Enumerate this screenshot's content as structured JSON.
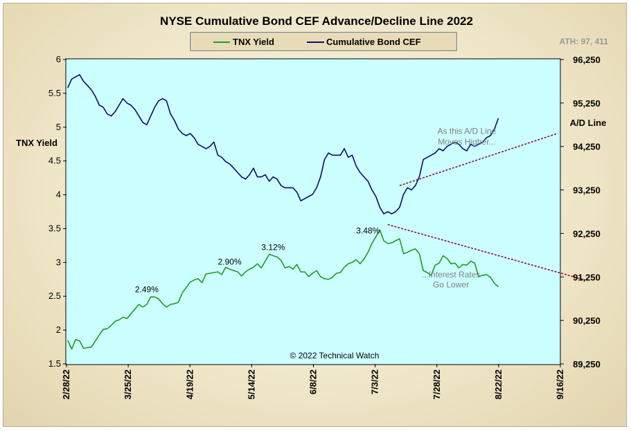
{
  "chart_data": {
    "type": "line",
    "title": "NYSE Cumulative  Bond CEF Advance/Decline  Line 2022",
    "ath_label": "ATH: 97, 411",
    "copyright": "© 2022 Technical  Watch",
    "left_axis": {
      "label": "TNX  Yield",
      "min": 1.5,
      "max": 6,
      "ticks": [
        "1.5",
        "2",
        "2.5",
        "3",
        "3.5",
        "4",
        "4.5",
        "5",
        "5.5",
        "6"
      ]
    },
    "right_axis": {
      "label": "A/D Line",
      "min": 89250,
      "max": 96250,
      "ticks": [
        "89,250",
        "90,250",
        "91,250",
        "92,250",
        "93,250",
        "94,250",
        "95,250",
        "96,250"
      ]
    },
    "x_axis": {
      "ticks": [
        "2/28/22",
        "3/25/22",
        "4/19/22",
        "5/14/22",
        "6/8/22",
        "7/3/22",
        "7/28/22",
        "8/22/22",
        "9/16/22"
      ],
      "span_days": 200
    },
    "legend": [
      "TNX Yield",
      "Cumulative Bond CEF"
    ],
    "colors": {
      "tnx": "#1f9a1f",
      "cef": "#0a0a6e",
      "plot_bg": "#ccffff",
      "trend": "#8b1030"
    },
    "series": [
      {
        "name": "TNX Yield",
        "axis": "left",
        "points": [
          [
            0,
            1.85
          ],
          [
            1,
            1.72
          ],
          [
            2,
            1.86
          ],
          [
            3,
            1.84
          ],
          [
            4,
            1.73
          ],
          [
            5,
            1.74
          ],
          [
            6,
            1.75
          ],
          [
            7,
            1.84
          ],
          [
            8,
            1.93
          ],
          [
            9,
            2.01
          ],
          [
            10,
            2.02
          ],
          [
            11,
            2.07
          ],
          [
            12,
            2.13
          ],
          [
            13,
            2.15
          ],
          [
            14,
            2.19
          ],
          [
            15,
            2.17
          ],
          [
            16,
            2.24
          ],
          [
            17,
            2.31
          ],
          [
            18,
            2.38
          ],
          [
            19,
            2.34
          ],
          [
            20,
            2.38
          ],
          [
            21,
            2.49
          ],
          [
            22,
            2.49
          ],
          [
            23,
            2.46
          ],
          [
            24,
            2.39
          ],
          [
            25,
            2.34
          ],
          [
            26,
            2.38
          ],
          [
            27,
            2.39
          ],
          [
            28,
            2.41
          ],
          [
            29,
            2.55
          ],
          [
            30,
            2.63
          ],
          [
            31,
            2.71
          ],
          [
            32,
            2.74
          ],
          [
            33,
            2.76
          ],
          [
            34,
            2.7
          ],
          [
            35,
            2.83
          ],
          [
            36,
            2.84
          ],
          [
            37,
            2.85
          ],
          [
            38,
            2.86
          ],
          [
            39,
            2.82
          ],
          [
            40,
            2.93
          ],
          [
            41,
            2.9
          ],
          [
            42,
            2.88
          ],
          [
            43,
            2.86
          ],
          [
            44,
            2.8
          ],
          [
            45,
            2.86
          ],
          [
            46,
            2.9
          ],
          [
            47,
            2.93
          ],
          [
            48,
            2.98
          ],
          [
            49,
            2.92
          ],
          [
            50,
            3.02
          ],
          [
            51,
            3.12
          ],
          [
            52,
            3.1
          ],
          [
            53,
            3.08
          ],
          [
            54,
            3.03
          ],
          [
            55,
            2.92
          ],
          [
            56,
            2.94
          ],
          [
            57,
            2.9
          ],
          [
            58,
            2.97
          ],
          [
            59,
            2.86
          ],
          [
            60,
            2.86
          ],
          [
            61,
            2.79
          ],
          [
            62,
            2.84
          ],
          [
            63,
            2.88
          ],
          [
            64,
            2.79
          ],
          [
            65,
            2.76
          ],
          [
            66,
            2.75
          ],
          [
            67,
            2.78
          ],
          [
            68,
            2.84
          ],
          [
            69,
            2.85
          ],
          [
            70,
            2.93
          ],
          [
            71,
            2.98
          ],
          [
            72,
            3.0
          ],
          [
            73,
            3.04
          ],
          [
            74,
            2.98
          ],
          [
            75,
            3.05
          ],
          [
            76,
            3.15
          ],
          [
            77,
            3.28
          ],
          [
            78,
            3.38
          ],
          [
            79,
            3.48
          ],
          [
            80,
            3.32
          ],
          [
            81,
            3.28
          ],
          [
            82,
            3.29
          ],
          [
            83,
            3.32
          ],
          [
            84,
            3.35
          ],
          [
            85,
            3.13
          ],
          [
            86,
            3.15
          ],
          [
            87,
            3.18
          ],
          [
            88,
            3.2
          ],
          [
            89,
            3.13
          ],
          [
            90,
            2.88
          ],
          [
            91,
            2.85
          ],
          [
            92,
            2.81
          ],
          [
            93,
            2.96
          ],
          [
            94,
            2.99
          ],
          [
            95,
            3.1
          ],
          [
            96,
            3.06
          ],
          [
            97,
            2.98
          ],
          [
            98,
            2.99
          ],
          [
            99,
            2.92
          ],
          [
            100,
            2.97
          ],
          [
            101,
            2.96
          ],
          [
            102,
            3.02
          ],
          [
            103,
            2.99
          ],
          [
            104,
            2.79
          ],
          [
            105,
            2.81
          ],
          [
            106,
            2.82
          ],
          [
            107,
            2.78
          ],
          [
            108,
            2.69
          ],
          [
            109,
            2.64
          ]
        ]
      },
      {
        "name": "Cumulative Bond CEF",
        "axis": "right",
        "points": [
          [
            0,
            95.6
          ],
          [
            1,
            95.8
          ],
          [
            2,
            95.85
          ],
          [
            3,
            95.9
          ],
          [
            4,
            95.75
          ],
          [
            5,
            95.65
          ],
          [
            6,
            95.55
          ],
          [
            7,
            95.4
          ],
          [
            8,
            95.2
          ],
          [
            9,
            95.15
          ],
          [
            10,
            95.0
          ],
          [
            11,
            94.95
          ],
          [
            12,
            95.05
          ],
          [
            13,
            95.2
          ],
          [
            14,
            95.35
          ],
          [
            15,
            95.25
          ],
          [
            16,
            95.2
          ],
          [
            17,
            95.1
          ],
          [
            18,
            94.95
          ],
          [
            19,
            94.8
          ],
          [
            20,
            94.75
          ],
          [
            21,
            94.95
          ],
          [
            22,
            95.15
          ],
          [
            23,
            95.3
          ],
          [
            24,
            95.35
          ],
          [
            25,
            95.3
          ],
          [
            26,
            95.0
          ],
          [
            27,
            94.85
          ],
          [
            28,
            94.65
          ],
          [
            29,
            94.55
          ],
          [
            30,
            94.5
          ],
          [
            31,
            94.55
          ],
          [
            32,
            94.45
          ],
          [
            33,
            94.3
          ],
          [
            34,
            94.25
          ],
          [
            35,
            94.2
          ],
          [
            36,
            94.25
          ],
          [
            37,
            94.35
          ],
          [
            38,
            94.05
          ],
          [
            39,
            94.0
          ],
          [
            40,
            93.9
          ],
          [
            41,
            93.85
          ],
          [
            42,
            93.75
          ],
          [
            43,
            93.65
          ],
          [
            44,
            93.55
          ],
          [
            45,
            93.5
          ],
          [
            46,
            93.6
          ],
          [
            47,
            93.75
          ],
          [
            48,
            93.55
          ],
          [
            49,
            93.55
          ],
          [
            50,
            93.6
          ],
          [
            51,
            93.45
          ],
          [
            52,
            93.55
          ],
          [
            53,
            93.5
          ],
          [
            54,
            93.35
          ],
          [
            55,
            93.3
          ],
          [
            56,
            93.3
          ],
          [
            57,
            93.3
          ],
          [
            58,
            93.2
          ],
          [
            59,
            93.0
          ],
          [
            60,
            93.05
          ],
          [
            61,
            93.1
          ],
          [
            62,
            93.15
          ],
          [
            63,
            93.3
          ],
          [
            64,
            93.55
          ],
          [
            65,
            93.95
          ],
          [
            66,
            94.1
          ],
          [
            67,
            94.05
          ],
          [
            68,
            94.05
          ],
          [
            69,
            94.05
          ],
          [
            70,
            94.2
          ],
          [
            71,
            94.0
          ],
          [
            72,
            94.05
          ],
          [
            73,
            93.8
          ],
          [
            74,
            93.65
          ],
          [
            75,
            93.55
          ],
          [
            76,
            93.45
          ],
          [
            77,
            93.25
          ],
          [
            78,
            93.1
          ],
          [
            79,
            92.85
          ],
          [
            80,
            92.7
          ],
          [
            81,
            92.75
          ],
          [
            82,
            92.7
          ],
          [
            83,
            92.75
          ],
          [
            84,
            92.85
          ],
          [
            85,
            93.15
          ],
          [
            86,
            93.3
          ],
          [
            87,
            93.25
          ],
          [
            88,
            93.35
          ],
          [
            89,
            93.55
          ],
          [
            90,
            93.95
          ],
          [
            91,
            94.0
          ],
          [
            92,
            94.05
          ],
          [
            93,
            94.1
          ],
          [
            94,
            94.2
          ],
          [
            95,
            94.15
          ],
          [
            96,
            94.25
          ],
          [
            97,
            94.3
          ],
          [
            98,
            94.35
          ],
          [
            99,
            94.3
          ],
          [
            100,
            94.2
          ],
          [
            101,
            94.15
          ],
          [
            102,
            94.3
          ],
          [
            103,
            94.25
          ],
          [
            104,
            94.3
          ],
          [
            105,
            94.35
          ],
          [
            106,
            94.45
          ],
          [
            107,
            94.5
          ],
          [
            108,
            94.65
          ],
          [
            109,
            94.9
          ]
        ]
      }
    ],
    "trendlines": [
      {
        "axis": "right",
        "from": [
          84,
          93.35
        ],
        "to": [
          124,
          94.55
        ]
      },
      {
        "axis": "left",
        "from": [
          81,
          3.56
        ],
        "to": [
          131,
          2.74
        ]
      }
    ],
    "annotations": [
      {
        "text": "2.49%",
        "at": [
          20,
          2.56
        ]
      },
      {
        "text": "2.90%",
        "at": [
          41,
          2.97
        ]
      },
      {
        "text": "3.12%",
        "at": [
          52,
          3.18
        ]
      },
      {
        "text": "3.48%",
        "at": [
          76,
          3.43
        ]
      },
      {
        "text": "As this A/D Line",
        "at": [
          101,
          4.9
        ],
        "style": "gray"
      },
      {
        "text": "Moves  Higher...",
        "at": [
          101,
          4.74
        ],
        "style": "gray"
      },
      {
        "text": "...Interest Rates",
        "at": [
          97,
          2.78
        ],
        "style": "gray"
      },
      {
        "text": "Go Lower",
        "at": [
          97,
          2.63
        ],
        "style": "gray"
      }
    ]
  }
}
